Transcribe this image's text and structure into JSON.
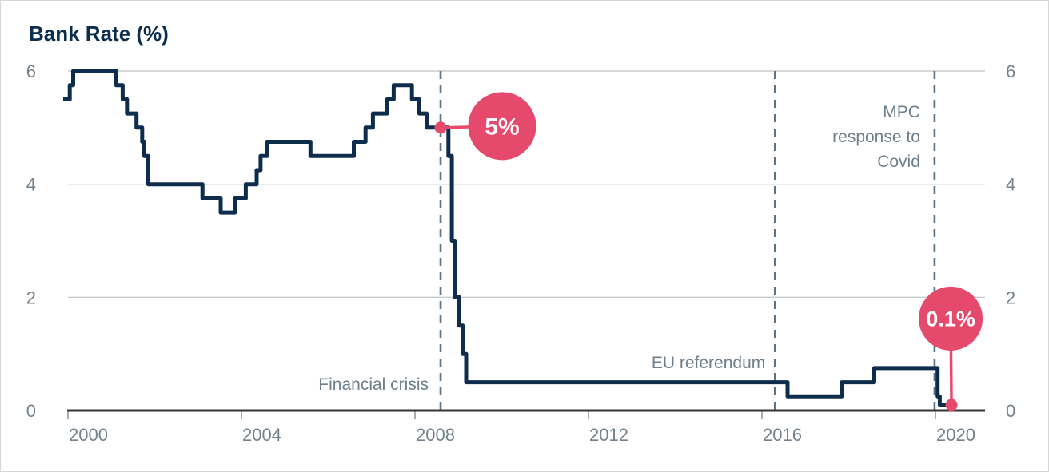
{
  "title": "Bank Rate (%)",
  "colors": {
    "line": "#0e2d4d",
    "accent": "#e5496b",
    "badge_text": "#ffffff",
    "grid": "#c8cbce",
    "axis": "#333436",
    "tick_mark": "#8b9299",
    "tick_label": "#73828d",
    "annotation": "#6d7f8d",
    "dashed_line": "#5a7585",
    "title_text": "#0b2d4e",
    "background": "#ffffff",
    "border": "#d7d7d7"
  },
  "chart_data": {
    "type": "line",
    "line_style": "step-after",
    "title": "Bank Rate (%)",
    "grid": "horizontal",
    "x_axis": {
      "ticks": [
        2000,
        2004,
        2008,
        2012,
        2016,
        2020
      ],
      "tick_labels": [
        "2000",
        "2004",
        "2008",
        "2012",
        "2016",
        "2020"
      ],
      "range": [
        1999.85,
        2021.15
      ]
    },
    "y_axis": {
      "ticks": [
        0,
        2,
        4,
        6
      ],
      "tick_labels": [
        "0",
        "2",
        "4",
        "6"
      ],
      "range": [
        0,
        6
      ],
      "label_sides": "both"
    },
    "series": [
      {
        "name": "Bank Rate (%)",
        "points": [
          [
            1999.89,
            5.5
          ],
          [
            2000.04,
            5.75
          ],
          [
            2000.12,
            6.0
          ],
          [
            2001.11,
            5.75
          ],
          [
            2001.26,
            5.5
          ],
          [
            2001.36,
            5.25
          ],
          [
            2001.58,
            5.0
          ],
          [
            2001.71,
            4.75
          ],
          [
            2001.76,
            4.5
          ],
          [
            2001.85,
            4.0
          ],
          [
            2003.1,
            3.75
          ],
          [
            2003.52,
            3.5
          ],
          [
            2003.85,
            3.75
          ],
          [
            2004.1,
            4.0
          ],
          [
            2004.35,
            4.25
          ],
          [
            2004.44,
            4.5
          ],
          [
            2004.59,
            4.75
          ],
          [
            2005.59,
            4.5
          ],
          [
            2006.59,
            4.75
          ],
          [
            2006.86,
            5.0
          ],
          [
            2007.03,
            5.25
          ],
          [
            2007.36,
            5.5
          ],
          [
            2007.51,
            5.75
          ],
          [
            2007.93,
            5.5
          ],
          [
            2008.1,
            5.25
          ],
          [
            2008.27,
            5.0
          ],
          [
            2008.77,
            4.5
          ],
          [
            2008.85,
            3.0
          ],
          [
            2008.92,
            2.0
          ],
          [
            2009.02,
            1.5
          ],
          [
            2009.1,
            1.0
          ],
          [
            2009.18,
            0.5
          ],
          [
            2016.59,
            0.25
          ],
          [
            2017.84,
            0.5
          ],
          [
            2018.59,
            0.75
          ],
          [
            2020.05,
            0.25
          ],
          [
            2020.1,
            0.1
          ],
          [
            2020.37,
            0.1
          ]
        ]
      }
    ],
    "events": [
      {
        "name": "financial-crisis",
        "year": 2008.59,
        "label_lines": [
          "Financial crisis"
        ],
        "label_x_offset": -15,
        "label_first_baseline": 487,
        "line_height": 31
      },
      {
        "name": "eu-referendum",
        "year": 2016.3,
        "label_lines": [
          "EU referendum"
        ],
        "label_x_offset": -12,
        "label_first_baseline": 460,
        "line_height": 31
      },
      {
        "name": "mpc-covid-response",
        "year": 2019.98,
        "label_lines": [
          "MPC",
          "response to",
          "Covid"
        ],
        "label_x_offset": -18,
        "label_first_baseline": 146,
        "line_height": 31
      }
    ],
    "callouts": [
      {
        "name": "rate-5-percent",
        "label": "5%",
        "x": 2008.59,
        "y": 5.0,
        "badge_dx": 77,
        "badge_dy": -2,
        "radius": 42.5,
        "font_size": 30
      },
      {
        "name": "rate-0-1-percent",
        "label": "0.1%",
        "x": 2020.37,
        "y": 0.1,
        "badge_dx": -1,
        "badge_dy": -108,
        "radius": 40,
        "font_size": 27
      }
    ]
  }
}
